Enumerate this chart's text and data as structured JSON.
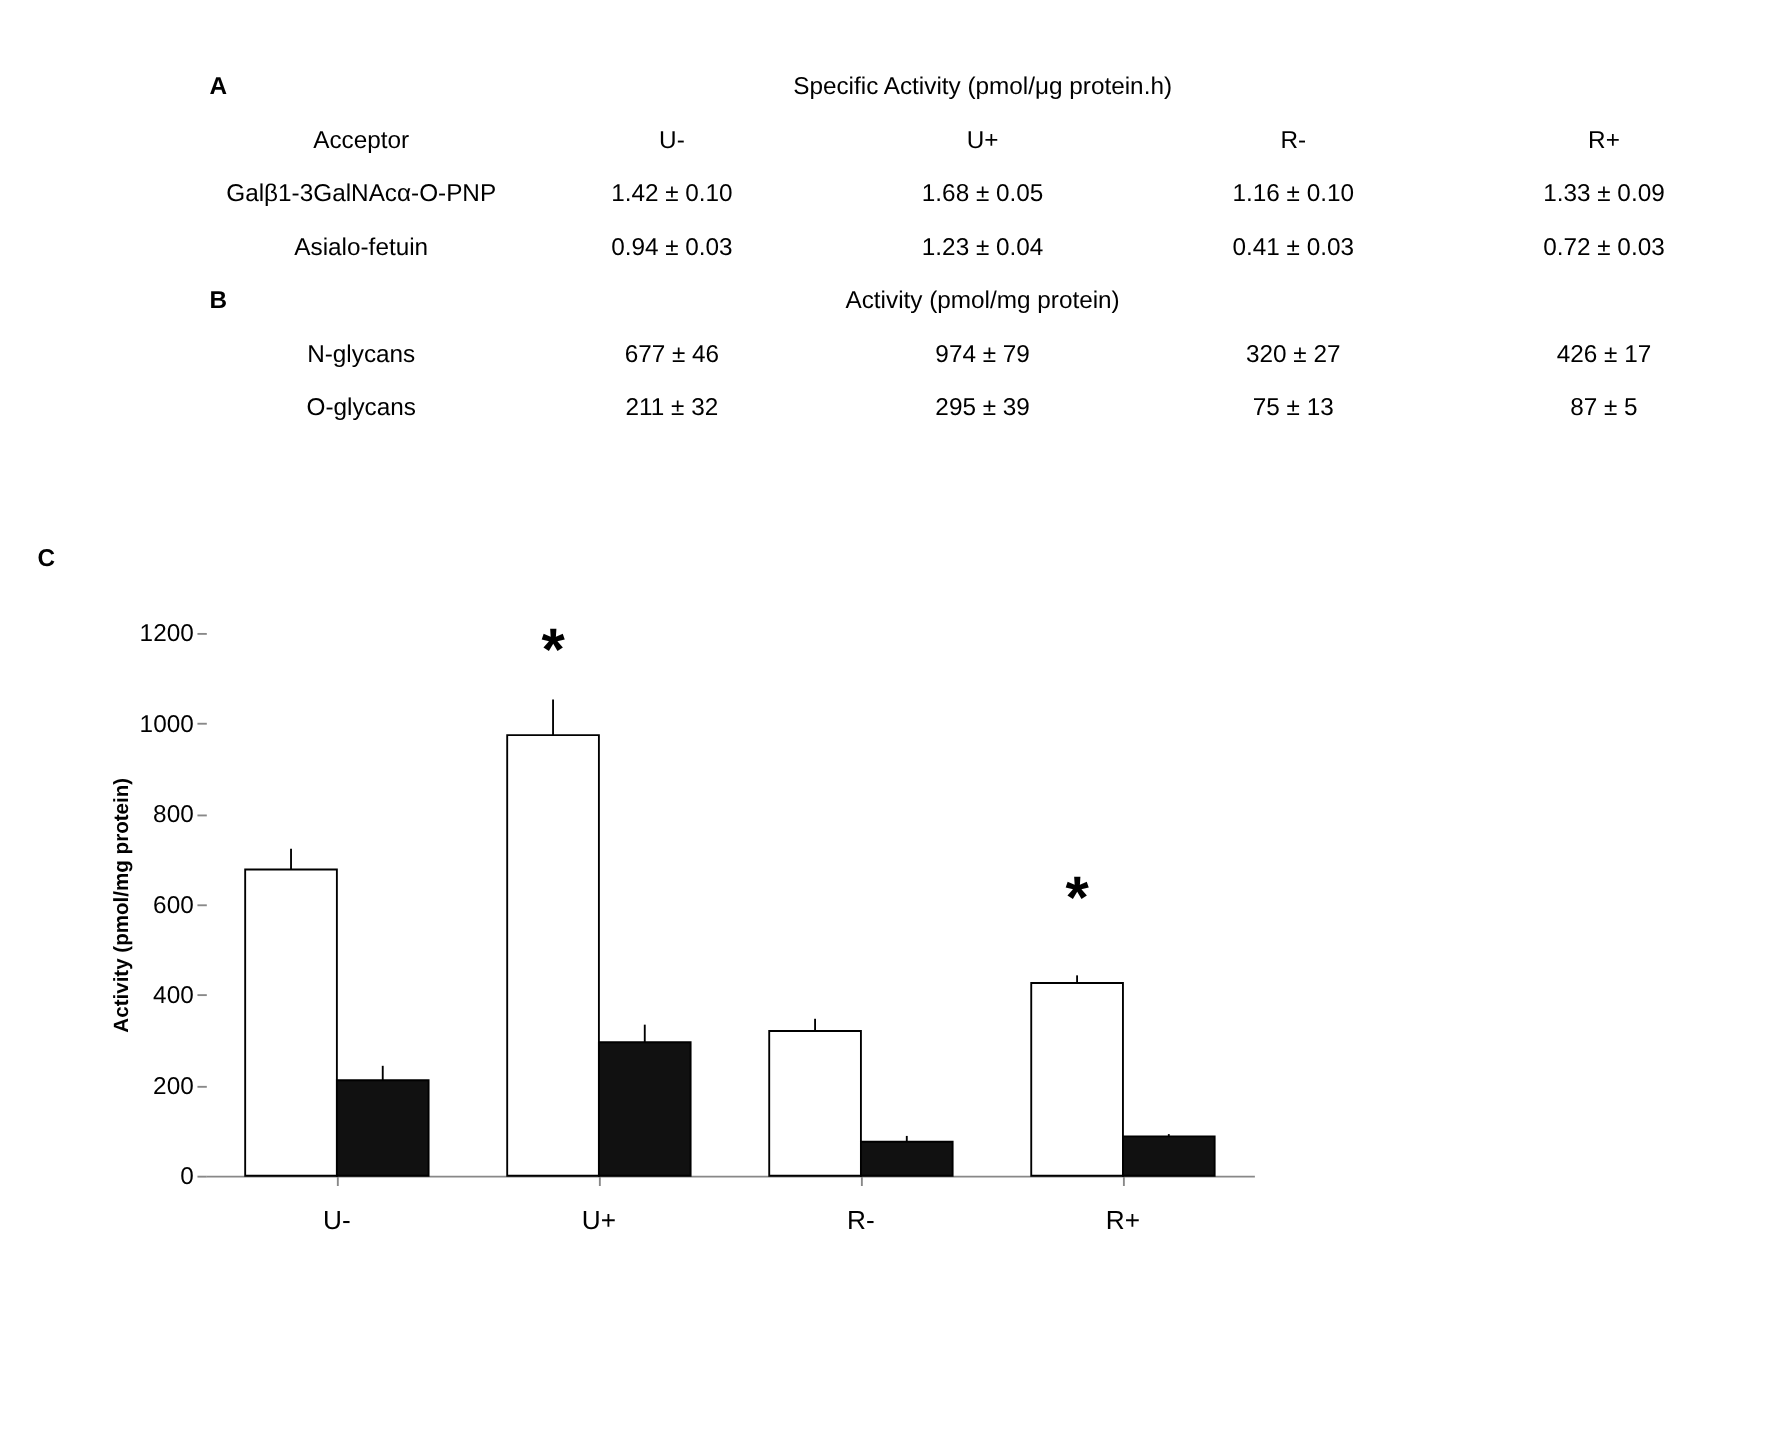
{
  "chart_data": {
    "type": "bar",
    "categories": [
      "U-",
      "U+",
      "R-",
      "R+"
    ],
    "series": [
      {
        "color": "#ffffff",
        "values": [
          677,
          974,
          320,
          426
        ],
        "errors": [
          46,
          79,
          27,
          17
        ]
      },
      {
        "color": "#111111",
        "values": [
          211,
          295,
          75,
          87
        ],
        "errors": [
          32,
          39,
          13,
          5
        ]
      }
    ],
    "ylabel": "Activity (pmol/mg protein)",
    "ylim": [
      0,
      1200
    ],
    "yticks": [
      0,
      200,
      400,
      600,
      800,
      1000,
      1200
    ],
    "grid": false,
    "legend": false,
    "annotations": [
      "A",
      "Specific Activity (pmol/μg protein.h)",
      "Acceptor",
      "Galβ1-3GalNAcα-O-PNP",
      "Asialo-fetuin",
      "1.42 ± 0.10",
      "1.68 ± 0.05",
      "1.16 ± 0.10",
      "1.33 ± 0.09",
      "0.94 ± 0.03",
      "1.23 ± 0.04",
      "0.41 ± 0.03",
      "0.72 ± 0.03",
      "B",
      "Activity (pmol/mg protein)",
      "N-glycans",
      "O-glycans",
      "677 ± 46",
      "974 ± 79",
      "320 ± 27",
      "426 ± 17",
      "211 ± 32",
      "295 ± 39",
      "75 ± 13",
      "87 ± 5",
      "C",
      {
        "text": "*",
        "x": "U+",
        "y": 974
      },
      {
        "text": "*",
        "x": "R+",
        "y": 426
      }
    ]
  }
}
